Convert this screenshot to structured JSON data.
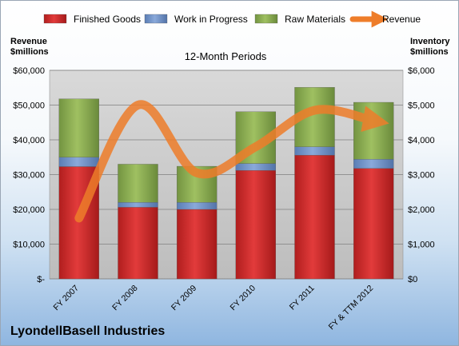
{
  "chart_data": {
    "type": "bar",
    "stacked": true,
    "subtitle": "12-Month Periods",
    "categories": [
      "FY 2007",
      "FY 2008",
      "FY 2009",
      "FY 2010",
      "FY 2011",
      "FY & TTM 2012"
    ],
    "left_axis": {
      "label_line1": "Revenue",
      "label_line2": "$millions",
      "range": [
        0,
        60000
      ],
      "ticks": [
        "$-",
        "$10,000",
        "$20,000",
        "$30,000",
        "$40,000",
        "$50,000",
        "$60,000"
      ]
    },
    "right_axis": {
      "label_line1": "Inventory",
      "label_line2": "$millions",
      "range": [
        0,
        6000
      ],
      "ticks": [
        "$0",
        "$1,000",
        "$2,000",
        "$3,000",
        "$4,000",
        "$5,000",
        "$6,000"
      ]
    },
    "series": [
      {
        "name": "Finished Goods",
        "axis": "right",
        "color": "#d42a2a",
        "values": [
          3230,
          2060,
          2000,
          3120,
          3560,
          3180
        ]
      },
      {
        "name": "Work in Progress",
        "axis": "right",
        "color": "#6f92c9",
        "values": [
          270,
          140,
          200,
          200,
          240,
          260
        ]
      },
      {
        "name": "Raw Materials",
        "axis": "right",
        "color": "#8caf4e",
        "values": [
          1680,
          1100,
          1040,
          1490,
          1710,
          1640
        ]
      },
      {
        "name": "Revenue",
        "axis": "left",
        "type": "line",
        "color": "#ee7d2a",
        "values": [
          17500,
          50000,
          30500,
          38000,
          48500,
          45500
        ]
      }
    ],
    "grid": true,
    "legend_position": "top"
  },
  "company_name": "LyondellBasell Industries"
}
